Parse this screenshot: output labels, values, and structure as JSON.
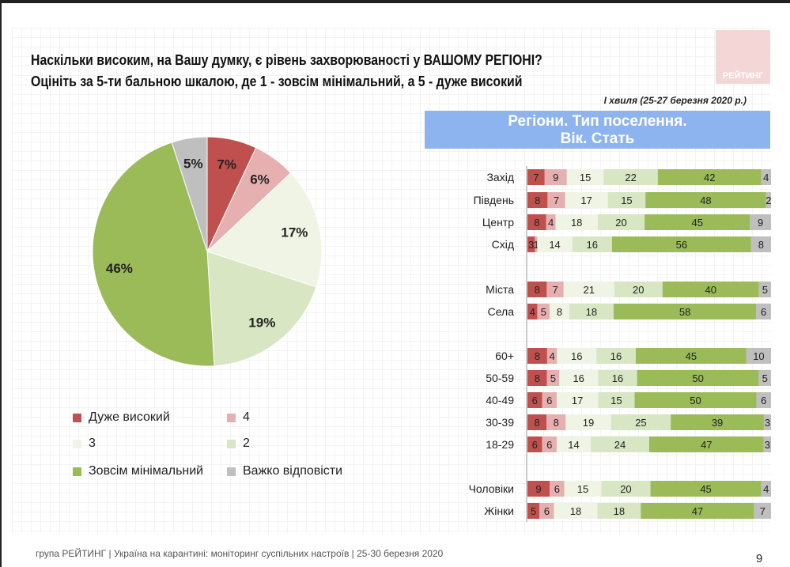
{
  "header": {
    "logo": "РЕЙТИНГ",
    "title_line1": "Наскільки високим, на Вашу думку, є рівень захворюваності у ВАШОМУ РЕГІОНІ?",
    "title_line2": "Оцініть за 5-ти бальною шкалою, де 1 - зовсім мінімальний, а 5 - дуже високий",
    "wave": "І хвиля (25-27 березня 2020 р.)",
    "bars_heading_line1": "Регіони. Тип поселення.",
    "bars_heading_line2": "Вік. Стать"
  },
  "footer": {
    "text": "група РЕЙТИНГ  |  Україна на карантині: моніторинг суспільних настроїв  |  25-30 березня 2020",
    "page": "9"
  },
  "colors": {
    "c5": "#c0504d",
    "c4": "#e6b0b0",
    "c3": "#f0f4e4",
    "c2": "#d8e6c4",
    "c1": "#9bbb59",
    "na": "#bfbfbf"
  },
  "chart_data": [
    {
      "type": "pie",
      "categories": [
        "Дуже високий",
        "4",
        "3",
        "2",
        "Зовсім мінімальний",
        "Важко відповісти"
      ],
      "values": [
        7,
        6,
        17,
        19,
        46,
        5
      ],
      "labels": [
        "7%",
        "6%",
        "17%",
        "19%",
        "46%",
        "5%"
      ],
      "legend_placement": "bottom"
    },
    {
      "type": "bar",
      "orientation": "horizontal",
      "stacked": true,
      "categories": [
        "Захід",
        "Південь",
        "Центр",
        "Схід",
        "Міста",
        "Села",
        "60+",
        "50-59",
        "40-49",
        "30-39",
        "18-29",
        "Чоловіки",
        "Жінки"
      ],
      "series": [
        {
          "name": "Дуже високий",
          "values": [
            7,
            8,
            8,
            3,
            8,
            4,
            8,
            8,
            6,
            8,
            6,
            9,
            5
          ]
        },
        {
          "name": "4",
          "values": [
            9,
            7,
            4,
            1,
            7,
            5,
            4,
            5,
            6,
            8,
            6,
            6,
            6
          ]
        },
        {
          "name": "3",
          "values": [
            15,
            17,
            18,
            14,
            21,
            8,
            16,
            16,
            17,
            19,
            14,
            15,
            18
          ]
        },
        {
          "name": "2",
          "values": [
            22,
            15,
            20,
            16,
            20,
            18,
            16,
            16,
            15,
            25,
            24,
            20,
            18
          ]
        },
        {
          "name": "Зовсім мінімальний",
          "values": [
            42,
            48,
            45,
            56,
            40,
            58,
            45,
            50,
            50,
            39,
            47,
            45,
            47
          ]
        },
        {
          "name": "Важко відповісти",
          "values": [
            4,
            2,
            9,
            8,
            5,
            6,
            10,
            5,
            6,
            3,
            3,
            4,
            7
          ]
        }
      ],
      "xlim": [
        0,
        100
      ]
    }
  ]
}
